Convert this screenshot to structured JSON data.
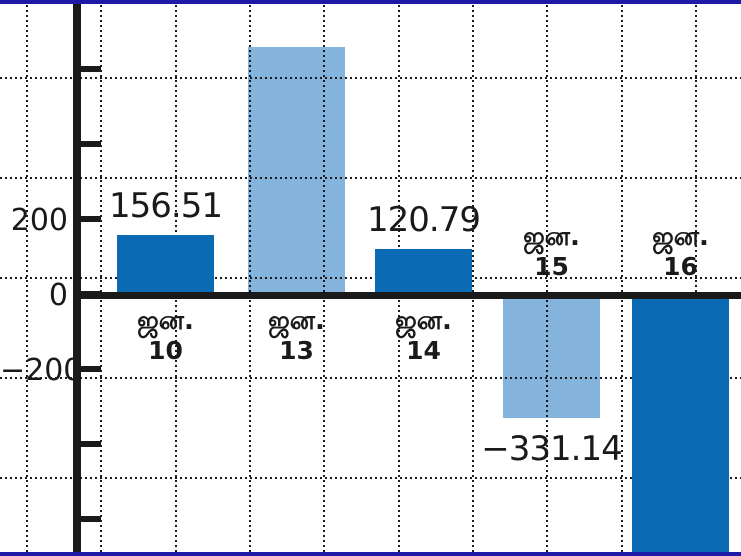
{
  "chart_data": {
    "type": "bar",
    "title": "",
    "xlabel": "",
    "ylabel": "",
    "legend": false,
    "grid": "dotted graph-paper grid, drawn over light bars but behind dark bars",
    "categories": [
      "ஜன. 10",
      "ஜன. 13",
      "ஜன. 14",
      "ஜன. 15",
      "ஜன. 16"
    ],
    "bars": [
      {
        "category_line1": "ஜன.",
        "category_line2": "10",
        "value": 156.51,
        "value_label": "156.51",
        "style": "dark",
        "category_side": "below-axis",
        "estimated": false,
        "clipped_at_bottom": false
      },
      {
        "category_line1": "ஜன.",
        "category_line2": "13",
        "value": 660,
        "value_label": "",
        "style": "light",
        "category_side": "below-axis",
        "estimated": true,
        "clipped_at_bottom": false
      },
      {
        "category_line1": "ஜன.",
        "category_line2": "14",
        "value": 120.79,
        "value_label": "120.79",
        "style": "dark",
        "category_side": "below-axis",
        "estimated": false,
        "clipped_at_bottom": false
      },
      {
        "category_line1": "ஜன.",
        "category_line2": "15",
        "value": -331.14,
        "value_label": "−331.14",
        "style": "light",
        "category_side": "above-axis",
        "estimated": false,
        "clipped_at_bottom": false
      },
      {
        "category_line1": "ஜன.",
        "category_line2": "16",
        "value": -700,
        "value_label": "",
        "style": "dark",
        "category_side": "above-axis",
        "estimated": true,
        "clipped_at_bottom": true
      }
    ],
    "y_axis": {
      "units_per_tick": 200,
      "tick_values": [
        600,
        400,
        200,
        0,
        -200,
        -400,
        -600
      ],
      "labeled_ticks": [
        {
          "value": 200,
          "label": "200"
        },
        {
          "value": 0,
          "label": "0"
        },
        {
          "value": -200,
          "label": "−200"
        }
      ],
      "ylim": [
        -700,
        700
      ]
    },
    "colors": {
      "dark_bar": "#0a6bb4",
      "light_bar": "#84b3dc",
      "frame": "#1d1aa8",
      "axis": "#1a1a1a",
      "text": "#1a1a1a",
      "grid_dots": "#1b1b1b",
      "background": "#ffffff"
    }
  }
}
